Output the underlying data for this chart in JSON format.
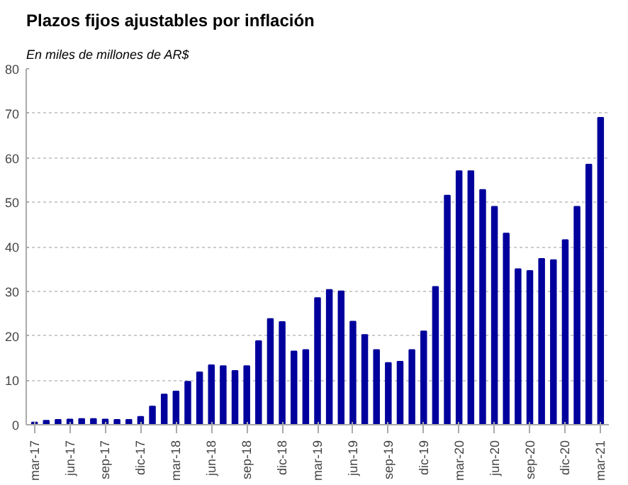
{
  "chart_data": {
    "type": "bar",
    "title": "Plazos fijos ajustables por inflación",
    "subtitle": "En miles de millones de AR$",
    "categories": [
      "mar-17",
      null,
      null,
      "jun-17",
      null,
      null,
      "sep-17",
      null,
      null,
      "dic-17",
      null,
      null,
      "mar-18",
      null,
      null,
      "jun-18",
      null,
      null,
      "sep-18",
      null,
      null,
      "dic-18",
      null,
      null,
      "mar-19",
      null,
      null,
      "jun-19",
      null,
      null,
      "sep-19",
      null,
      null,
      "dic-19",
      null,
      null,
      "mar-20",
      null,
      null,
      "jun-20",
      null,
      null,
      "sep-20",
      null,
      null,
      "dic-20",
      null,
      null,
      "mar-21"
    ],
    "values": [
      0.5,
      0.9,
      1.1,
      1.2,
      1.3,
      1.3,
      1.2,
      1.1,
      1.1,
      1.8,
      4.1,
      6.8,
      7.5,
      9.7,
      11.8,
      13.4,
      13.2,
      12.1,
      13.2,
      18.8,
      23.8,
      23.1,
      16.5,
      16.8,
      28.5,
      30.3,
      30.0,
      23.2,
      20.2,
      16.8,
      13.9,
      14.2,
      16.8,
      21.0,
      31.0,
      51.5,
      57.0,
      57.0,
      52.8,
      49.0,
      43.0,
      35.0,
      34.6,
      37.3,
      37.0,
      41.5,
      49.0,
      58.5,
      69.0
    ],
    "color": "#00009c",
    "ylim": [
      0,
      80
    ],
    "yticks": [
      0,
      10,
      20,
      30,
      40,
      50,
      60,
      70,
      80
    ],
    "grid": "y"
  }
}
